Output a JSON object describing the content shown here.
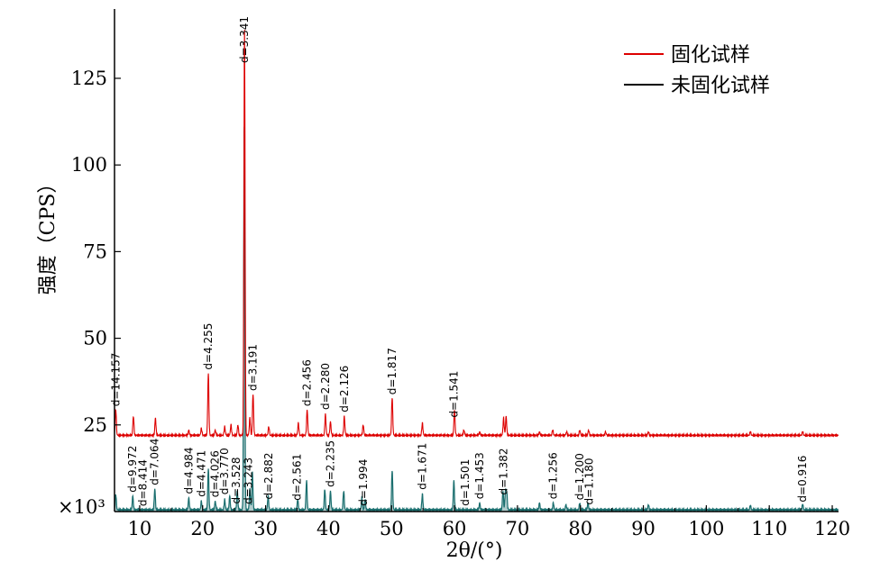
{
  "chart_data": {
    "type": "line",
    "title": "",
    "xlabel": "2θ/(°)",
    "ylabel": "强度（CPS）",
    "y_unit_label": "×10³",
    "xlim": [
      6,
      121
    ],
    "ylim": [
      0,
      145
    ],
    "x_ticks": [
      10,
      20,
      30,
      40,
      50,
      60,
      70,
      80,
      90,
      100,
      110,
      120
    ],
    "y_ticks": [
      25,
      50,
      75,
      100,
      125
    ],
    "legend_position": "top-right",
    "grid": false,
    "colors": {
      "cured": "#dd0000",
      "uncured_outline": "#000000",
      "uncured_fill": "#1a6e6e"
    },
    "series": [
      {
        "name": "固化试样",
        "baseline": 22,
        "peaks": [
          [
            6.2,
            7.5
          ],
          [
            9.0,
            5.5
          ],
          [
            12.5,
            5.0
          ],
          [
            17.8,
            1.5
          ],
          [
            19.8,
            2.0
          ],
          [
            20.9,
            18.0
          ],
          [
            22.0,
            1.5
          ],
          [
            23.5,
            2.5
          ],
          [
            24.5,
            3.0
          ],
          [
            25.6,
            3.0
          ],
          [
            26.65,
            117.0
          ],
          [
            27.5,
            5.0
          ],
          [
            28.0,
            12.0
          ],
          [
            30.5,
            2.5
          ],
          [
            35.2,
            3.5
          ],
          [
            36.6,
            7.5
          ],
          [
            39.5,
            6.0
          ],
          [
            40.3,
            4.0
          ],
          [
            42.5,
            5.5
          ],
          [
            45.5,
            3.0
          ],
          [
            50.1,
            11.0
          ],
          [
            54.9,
            3.5
          ],
          [
            60.0,
            7.5
          ],
          [
            61.5,
            1.5
          ],
          [
            64.0,
            1.0
          ],
          [
            67.8,
            5.0
          ],
          [
            68.2,
            5.5
          ],
          [
            73.5,
            1.0
          ],
          [
            75.6,
            1.5
          ],
          [
            77.8,
            1.0
          ],
          [
            79.9,
            1.5
          ],
          [
            81.3,
            1.5
          ],
          [
            84.0,
            1.0
          ],
          [
            90.8,
            1.0
          ],
          [
            107.0,
            1.0
          ],
          [
            115.3,
            1.0
          ]
        ]
      },
      {
        "name": "未固化试样",
        "baseline": 0.5,
        "peaks": [
          [
            6.2,
            4.5
          ],
          [
            8.9,
            4.0
          ],
          [
            12.4,
            6.0
          ],
          [
            17.8,
            3.5
          ],
          [
            19.8,
            2.5
          ],
          [
            20.9,
            12.0
          ],
          [
            22.0,
            2.5
          ],
          [
            23.5,
            3.0
          ],
          [
            24.3,
            4.0
          ],
          [
            25.5,
            5.5
          ],
          [
            26.6,
            112.0
          ],
          [
            27.5,
            6.0
          ],
          [
            27.9,
            11.0
          ],
          [
            30.4,
            4.0
          ],
          [
            35.1,
            3.0
          ],
          [
            36.5,
            8.5
          ],
          [
            39.4,
            6.0
          ],
          [
            40.3,
            5.5
          ],
          [
            42.4,
            5.5
          ],
          [
            45.3,
            3.5
          ],
          [
            45.8,
            3.0
          ],
          [
            50.1,
            11.5
          ],
          [
            54.9,
            4.5
          ],
          [
            59.9,
            8.5
          ],
          [
            64.0,
            2.0
          ],
          [
            67.7,
            5.5
          ],
          [
            68.1,
            5.5
          ],
          [
            68.3,
            5.0
          ],
          [
            73.5,
            2.0
          ],
          [
            75.7,
            2.0
          ],
          [
            77.7,
            1.5
          ],
          [
            79.9,
            2.0
          ],
          [
            81.2,
            2.0
          ],
          [
            90.8,
            1.5
          ],
          [
            107.0,
            1.2
          ],
          [
            115.3,
            1.5
          ]
        ]
      }
    ],
    "annotations": [
      {
        "text": "d=14.157",
        "x": 6.2,
        "series": "固化试样"
      },
      {
        "text": "d=9.972",
        "x": 8.9,
        "series": "未固化试样"
      },
      {
        "text": "d=8.414",
        "x": 10.5,
        "series": "未固化试样"
      },
      {
        "text": "d=7.064",
        "x": 12.4,
        "series": "未固化试样"
      },
      {
        "text": "d=4.984",
        "x": 17.8,
        "series": "未固化试样"
      },
      {
        "text": "d=4.471",
        "x": 19.8,
        "series": "未固化试样"
      },
      {
        "text": "d=4.255",
        "x": 20.9,
        "series": "固化试样"
      },
      {
        "text": "d=4.026",
        "x": 22.0,
        "series": "未固化试样"
      },
      {
        "text": "d=3.770",
        "x": 23.5,
        "series": "未固化试样"
      },
      {
        "text": "d=3.528",
        "x": 25.3,
        "series": "未固化试样"
      },
      {
        "text": "d=3.341",
        "x": 26.65,
        "series": "固化试样"
      },
      {
        "text": "d=3.243",
        "x": 27.3,
        "series": "未固化试样"
      },
      {
        "text": "d=3.191",
        "x": 28.0,
        "series": "固化试样"
      },
      {
        "text": "d=2.882",
        "x": 30.5,
        "series": "未固化试样"
      },
      {
        "text": "d=2.561",
        "x": 35.0,
        "series": "未固化试样"
      },
      {
        "text": "d=2.456",
        "x": 36.6,
        "series": "固化试样"
      },
      {
        "text": "d=2.280",
        "x": 39.5,
        "series": "固化试样"
      },
      {
        "text": "d=2.235",
        "x": 40.3,
        "series": "未固化试样"
      },
      {
        "text": "d=2.126",
        "x": 42.5,
        "series": "固化试样"
      },
      {
        "text": "d=1.994",
        "x": 45.5,
        "series": "未固化试样"
      },
      {
        "text": "d=1.817",
        "x": 50.1,
        "series": "固化试样"
      },
      {
        "text": "d=1.671",
        "x": 54.9,
        "series": "未固化试样"
      },
      {
        "text": "d=1.541",
        "x": 59.9,
        "series": "固化试样"
      },
      {
        "text": "d=1.501",
        "x": 61.7,
        "series": "未固化试样"
      },
      {
        "text": "d=1.453",
        "x": 64.0,
        "series": "未固化试样"
      },
      {
        "text": "d=1.382",
        "x": 67.8,
        "series": "未固化试样"
      },
      {
        "text": "d=1.256",
        "x": 75.7,
        "series": "未固化试样"
      },
      {
        "text": "d=1.200",
        "x": 79.9,
        "series": "未固化试样"
      },
      {
        "text": "d=1.180",
        "x": 81.4,
        "series": "未固化试样"
      },
      {
        "text": "d=0.916",
        "x": 115.3,
        "series": "未固化试样"
      }
    ]
  }
}
